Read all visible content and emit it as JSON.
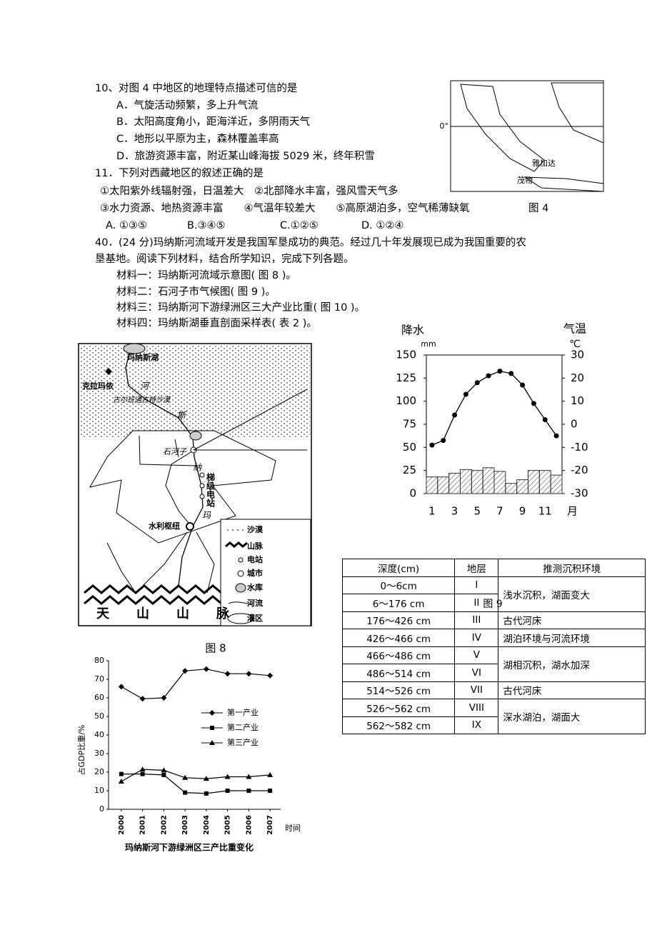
{
  "questions": [
    {
      "stem": "10、对图 4 中地区的地理特点描述可信的是",
      "options": [
        "A．气旋活动频繁，多上升气流",
        "B．太阳高度角小，距海洋近，多阴雨天气",
        "C．地形以平原为主，森林覆盖率高",
        "D．旅游资源丰富，附近某山峰海拔 5029 米，终年积雪"
      ]
    },
    {
      "stem": "11．下列对西藏地区的叙述正确的是",
      "lines": [
        "①太阳紫外线辐射强，日温差大　②北部降水丰富，强风雪天气多",
        "③水力资源、地热资源丰富　　④气温年较差大　　⑤高原湖泊多，空气稀薄缺氧"
      ],
      "options": [
        "A. ①③⑤",
        "B.③④⑤",
        "C.①②⑤",
        "D. ①②④"
      ]
    }
  ],
  "figure4": {
    "caption": "图 4",
    "labels": [
      "0°",
      "雅加达",
      "茂物"
    ]
  },
  "q40": {
    "stem": [
      "40．(24 分)玛纳斯河流域开发是我国军垦成功的典范。经过几十年发展现已成为我国重要的农",
      "垦基地。阅读下列材料，结合所学知识，完成下列各题。"
    ],
    "materials": [
      "材料一：玛纳斯河流域示意图( 图 8 )。",
      "材料二：石河子市气候图( 图 9 )。",
      "材料三：玛纳斯河下游绿洲区三大产业比重( 图 10 )。",
      "材料四：玛纳斯湖垂直剖面采样表( 表 2 )。"
    ]
  },
  "figure8": {
    "caption": "图 8",
    "lake": "玛纳斯湖",
    "city1": "克拉玛依",
    "desert": "古尔班通古特沙漠",
    "city2": "石河子",
    "station": "梯级电站",
    "hub": "水利枢纽",
    "mountain": "天山山脉",
    "river_chars": [
      "河",
      "斯",
      "纳",
      "玛"
    ],
    "legend": [
      "沙漠",
      "山脉",
      "电站",
      "城市",
      "水库",
      "河流",
      "灌区"
    ]
  },
  "figure9_caption": "图 9",
  "table": {
    "header": [
      "深度(cm)",
      "地层",
      "推测沉积环境"
    ],
    "rows": [
      [
        "0～6cm",
        "I",
        "浅水沉积，湖面变大"
      ],
      [
        "6～176 cm",
        "II"
      ],
      [
        "176～426 cm",
        "III",
        "古代河床"
      ],
      [
        "426～466 cm",
        "IV",
        "湖泊环境与河流环境"
      ],
      [
        "466～486 cm",
        "V",
        "湖相沉积，湖水加深"
      ],
      [
        "486～514 cm",
        "VI"
      ],
      [
        "514～526 cm",
        "VII",
        "古代河床"
      ],
      [
        "526～562 cm",
        "VIII",
        "深水湖泊，湖面大"
      ],
      [
        "562～582 cm",
        "IX"
      ]
    ]
  },
  "chart_data": [
    {
      "type": "combo",
      "ylabel": "降水",
      "yunit": "mm",
      "y2label": "气温",
      "y2unit": "℃",
      "xunit": "月",
      "categories": [
        1,
        null,
        3,
        null,
        5,
        null,
        7,
        null,
        9,
        null,
        11,
        null
      ],
      "ylim": [
        0,
        150
      ],
      "yticks": [
        0,
        25,
        50,
        75,
        100,
        125,
        150
      ],
      "y2lim": [
        -30,
        30
      ],
      "y2ticks": [
        -30,
        -20,
        -10,
        0,
        10,
        20,
        30
      ],
      "series": [
        {
          "type": "bar",
          "color": "#333333",
          "values": [
            18,
            18,
            22,
            26,
            25,
            28,
            24,
            11,
            15,
            25,
            25,
            20
          ]
        },
        {
          "type": "line",
          "axis": "y2",
          "color": "#000000",
          "values": [
            -9,
            -7,
            4,
            13,
            18,
            21,
            23,
            22,
            17,
            9,
            2,
            -5
          ]
        }
      ]
    },
    {
      "type": "line",
      "title": "玛纳斯河下游绿洲区三产比重变化",
      "ylabel": "占GDP比重/%",
      "xlabel": "时间",
      "categories": [
        "2000",
        "2001",
        "2002",
        "2003",
        "2004",
        "2005",
        "2006",
        "2007"
      ],
      "ylim": [
        0,
        80
      ],
      "yticks": [
        0,
        10,
        20,
        30,
        40,
        50,
        60,
        70,
        80
      ],
      "series": [
        {
          "name": "第一产业",
          "color": "#000000",
          "marker": "diamond",
          "values": [
            66,
            59.5,
            60,
            74.5,
            75.5,
            73,
            73,
            72
          ]
        },
        {
          "name": "第二产业",
          "color": "#000000",
          "marker": "square",
          "values": [
            19,
            19,
            18.5,
            9,
            8.5,
            10,
            10,
            10
          ]
        },
        {
          "name": "第三产业",
          "color": "#000000",
          "marker": "triangle",
          "values": [
            15,
            21.5,
            21,
            17,
            16.5,
            17.5,
            17.5,
            18.5
          ]
        }
      ]
    }
  ]
}
